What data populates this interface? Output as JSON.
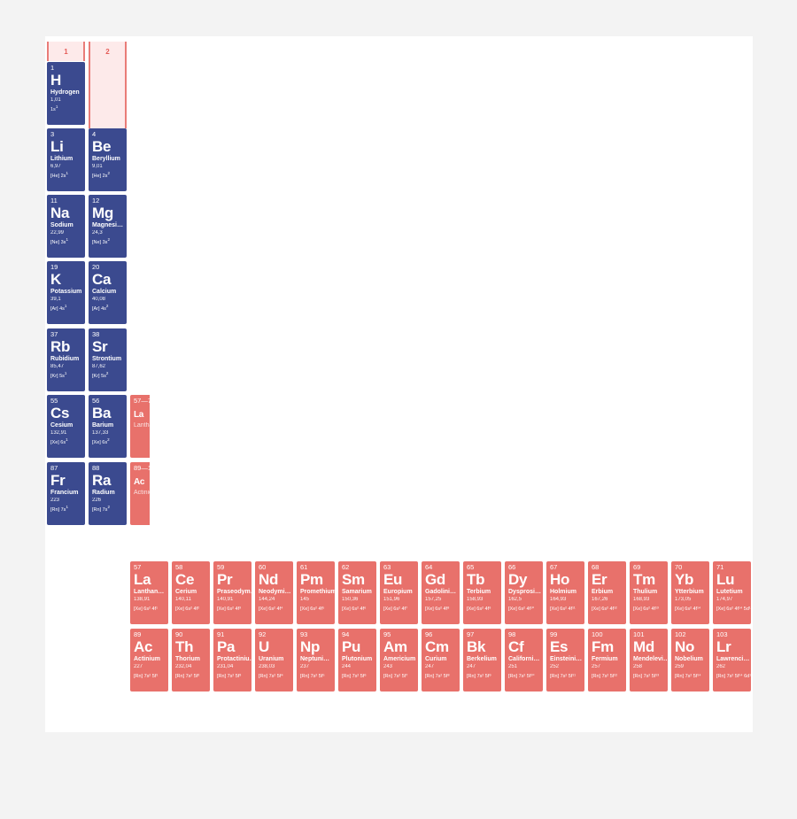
{
  "groups": [
    "1",
    "2"
  ],
  "colors": {
    "main_block": "#3b4a8f",
    "f_block": "#e8716b",
    "group_header": "#e55d58"
  },
  "main_elements": [
    {
      "num": "1",
      "sym": "H",
      "name": "Hydrogen",
      "mass": "1,01",
      "conf_core": "1s",
      "conf_sup": "1"
    },
    {
      "num": "3",
      "sym": "Li",
      "name": "Lithium",
      "mass": "6,97",
      "conf_core": "[He] 2s",
      "conf_sup": "1"
    },
    {
      "num": "4",
      "sym": "Be",
      "name": "Beryllium",
      "mass": "9,01",
      "conf_core": "[He] 2s",
      "conf_sup": "2"
    },
    {
      "num": "11",
      "sym": "Na",
      "name": "Sodium",
      "mass": "22,99",
      "conf_core": "[Ne] 3s",
      "conf_sup": "1"
    },
    {
      "num": "12",
      "sym": "Mg",
      "name": "Magnesi…",
      "mass": "24,3",
      "conf_core": "[Ne] 3s",
      "conf_sup": "2"
    },
    {
      "num": "19",
      "sym": "K",
      "name": "Potassium",
      "mass": "39,1",
      "conf_core": "[Ar] 4s",
      "conf_sup": "1"
    },
    {
      "num": "20",
      "sym": "Ca",
      "name": "Calcium",
      "mass": "40,08",
      "conf_core": "[Ar] 4s",
      "conf_sup": "2"
    },
    {
      "num": "37",
      "sym": "Rb",
      "name": "Rubidium",
      "mass": "85,47",
      "conf_core": "[Kr] 5s",
      "conf_sup": "1"
    },
    {
      "num": "38",
      "sym": "Sr",
      "name": "Strontium",
      "mass": "87,62",
      "conf_core": "[Kr] 5s",
      "conf_sup": "2"
    },
    {
      "num": "55",
      "sym": "Cs",
      "name": "Cesium",
      "mass": "132,91",
      "conf_core": "[Xe] 6s",
      "conf_sup": "1"
    },
    {
      "num": "56",
      "sym": "Ba",
      "name": "Barium",
      "mass": "137,33",
      "conf_core": "[Xe] 6s",
      "conf_sup": "2"
    },
    {
      "num": "87",
      "sym": "Fr",
      "name": "Francium",
      "mass": "223",
      "conf_core": "[Rn] 7s",
      "conf_sup": "1"
    },
    {
      "num": "88",
      "sym": "Ra",
      "name": "Radium",
      "mass": "226",
      "conf_core": "[Rn] 7s",
      "conf_sup": "2"
    }
  ],
  "placeholders": [
    {
      "num": "57—71",
      "sym": "La",
      "name": "Lanthanides"
    },
    {
      "num": "89—103",
      "sym": "Ac",
      "name": "Actinides"
    }
  ],
  "lanthanides": [
    {
      "num": "57",
      "sym": "La",
      "name": "Lanthan…",
      "mass": "138,91",
      "conf": "[Xe] 6s² 4f¹"
    },
    {
      "num": "58",
      "sym": "Ce",
      "name": "Cerium",
      "mass": "140,11",
      "conf": "[Xe] 6s² 4f²"
    },
    {
      "num": "59",
      "sym": "Pr",
      "name": "Praseodym…",
      "mass": "140,91",
      "conf": "[Xe] 6s² 4f³"
    },
    {
      "num": "60",
      "sym": "Nd",
      "name": "Neodymi…",
      "mass": "144,24",
      "conf": "[Xe] 6s² 4f⁴"
    },
    {
      "num": "61",
      "sym": "Pm",
      "name": "Promethium",
      "mass": "145",
      "conf": "[Xe] 6s² 4f⁵"
    },
    {
      "num": "62",
      "sym": "Sm",
      "name": "Samarium",
      "mass": "150,36",
      "conf": "[Xe] 6s² 4f⁶"
    },
    {
      "num": "63",
      "sym": "Eu",
      "name": "Europium",
      "mass": "151,96",
      "conf": "[Xe] 6s² 4f⁷"
    },
    {
      "num": "64",
      "sym": "Gd",
      "name": "Gadolini…",
      "mass": "157,25",
      "conf": "[Xe] 6s² 4f⁸"
    },
    {
      "num": "65",
      "sym": "Tb",
      "name": "Terbium",
      "mass": "158,93",
      "conf": "[Xe] 6s² 4f⁹"
    },
    {
      "num": "66",
      "sym": "Dy",
      "name": "Dysprosi…",
      "mass": "162,5",
      "conf": "[Xe] 6s² 4f¹⁰"
    },
    {
      "num": "67",
      "sym": "Ho",
      "name": "Holmium",
      "mass": "164,93",
      "conf": "[Xe] 6s² 4f¹¹"
    },
    {
      "num": "68",
      "sym": "Er",
      "name": "Erbium",
      "mass": "167,26",
      "conf": "[Xe] 6s² 4f¹²"
    },
    {
      "num": "69",
      "sym": "Tm",
      "name": "Thulium",
      "mass": "168,93",
      "conf": "[Xe] 6s² 4f¹³"
    },
    {
      "num": "70",
      "sym": "Yb",
      "name": "Ytterbium",
      "mass": "173,05",
      "conf": "[Xe] 6s² 4f¹⁴"
    },
    {
      "num": "71",
      "sym": "Lu",
      "name": "Lutetium",
      "mass": "174,97",
      "conf": "[Xe] 6s² 4f¹⁴ 5d¹"
    }
  ],
  "actinides": [
    {
      "num": "89",
      "sym": "Ac",
      "name": "Actinium",
      "mass": "227",
      "conf": "[Rn] 7s² 5f¹"
    },
    {
      "num": "90",
      "sym": "Th",
      "name": "Thorium",
      "mass": "232,04",
      "conf": "[Rn] 7s² 5f²"
    },
    {
      "num": "91",
      "sym": "Pa",
      "name": "Protactiniu…",
      "mass": "231,04",
      "conf": "[Rn] 7s² 5f³"
    },
    {
      "num": "92",
      "sym": "U",
      "name": "Uranium",
      "mass": "238,03",
      "conf": "[Rn] 7s² 5f⁴"
    },
    {
      "num": "93",
      "sym": "Np",
      "name": "Neptuni…",
      "mass": "237",
      "conf": "[Rn] 7s² 5f⁵"
    },
    {
      "num": "94",
      "sym": "Pu",
      "name": "Plutonium",
      "mass": "244",
      "conf": "[Rn] 7s² 5f⁶"
    },
    {
      "num": "95",
      "sym": "Am",
      "name": "Americium",
      "mass": "243",
      "conf": "[Rn] 7s² 5f⁷"
    },
    {
      "num": "96",
      "sym": "Cm",
      "name": "Curium",
      "mass": "247",
      "conf": "[Rn] 7s² 5f⁸"
    },
    {
      "num": "97",
      "sym": "Bk",
      "name": "Berkelium",
      "mass": "247",
      "conf": "[Rn] 7s² 5f⁹"
    },
    {
      "num": "98",
      "sym": "Cf",
      "name": "Californi…",
      "mass": "251",
      "conf": "[Rn] 7s² 5f¹⁰"
    },
    {
      "num": "99",
      "sym": "Es",
      "name": "Einsteini…",
      "mass": "252",
      "conf": "[Rn] 7s² 5f¹¹"
    },
    {
      "num": "100",
      "sym": "Fm",
      "name": "Fermium",
      "mass": "257",
      "conf": "[Rn] 7s² 5f¹²"
    },
    {
      "num": "101",
      "sym": "Md",
      "name": "Mendelevi…",
      "mass": "258",
      "conf": "[Rn] 7s² 5f¹³"
    },
    {
      "num": "102",
      "sym": "No",
      "name": "Nobelium",
      "mass": "259",
      "conf": "[Rn] 7s² 5f¹⁴"
    },
    {
      "num": "103",
      "sym": "Lr",
      "name": "Lawrenci…",
      "mass": "262",
      "conf": "[Rn] 7s² 5f¹⁴ 6d¹"
    }
  ]
}
